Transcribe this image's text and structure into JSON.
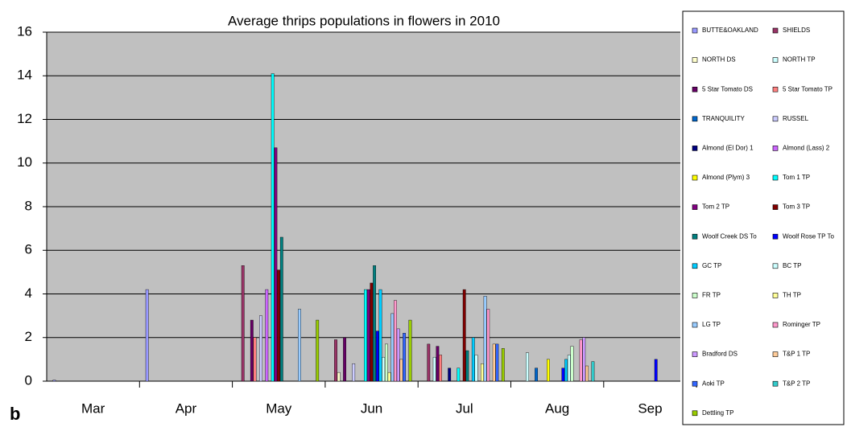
{
  "chart_data": {
    "type": "bar",
    "title": "Average thrips populations in flowers in 2010",
    "annotation": "b",
    "categories": [
      "Mar",
      "Apr",
      "May",
      "Jun",
      "Jul",
      "Aug",
      "Sep"
    ],
    "ylim": [
      0,
      16
    ],
    "yticks": [
      0,
      2,
      4,
      6,
      8,
      10,
      12,
      14,
      16
    ],
    "grid": true,
    "legend": "right",
    "background": "#c0c0c0",
    "series": [
      {
        "name": "BUTTE&OAKLAND",
        "color": "#9999ff",
        "values": [
          0.05,
          4.2,
          null,
          null,
          null,
          null,
          null
        ]
      },
      {
        "name": "SHIELDS",
        "color": "#993366",
        "values": [
          null,
          null,
          5.3,
          1.9,
          1.7,
          null,
          null
        ]
      },
      {
        "name": "NORTH DS",
        "color": "#ffffcc",
        "values": [
          null,
          null,
          null,
          0.4,
          null,
          null,
          null
        ]
      },
      {
        "name": "NORTH TP",
        "color": "#ccffff",
        "values": [
          null,
          null,
          null,
          null,
          1.1,
          1.3,
          null
        ]
      },
      {
        "name": "5 Star Tomato DS",
        "color": "#660066",
        "values": [
          null,
          null,
          2.8,
          2.0,
          1.6,
          null,
          null
        ]
      },
      {
        "name": "5 Star Tomato TP",
        "color": "#ff8080",
        "values": [
          null,
          null,
          2.0,
          null,
          1.2,
          null,
          null
        ]
      },
      {
        "name": "TRANQUILITY",
        "color": "#0066cc",
        "values": [
          null,
          null,
          null,
          null,
          null,
          0.6,
          null
        ]
      },
      {
        "name": "RUSSEL",
        "color": "#ccccff",
        "values": [
          null,
          null,
          3.0,
          0.8,
          null,
          null,
          null
        ]
      },
      {
        "name": "Almond (El Dor)  1",
        "color": "#000080",
        "values": [
          null,
          null,
          null,
          null,
          0.6,
          null,
          null
        ]
      },
      {
        "name": "Almond (Lass) 2",
        "color": "#cc66ff",
        "values": [
          null,
          null,
          4.2,
          null,
          null,
          null,
          null
        ]
      },
      {
        "name": "Almond (Plym) 3",
        "color": "#ffff00",
        "values": [
          null,
          null,
          null,
          null,
          null,
          1.0,
          null
        ]
      },
      {
        "name": "Tom 1 TP",
        "color": "#00ffff",
        "values": [
          null,
          null,
          14.1,
          4.2,
          0.6,
          null,
          null
        ]
      },
      {
        "name": "Tom 2 TP",
        "color": "#800080",
        "values": [
          null,
          null,
          10.7,
          4.2,
          null,
          null,
          null
        ]
      },
      {
        "name": "Tom 3 TP",
        "color": "#800000",
        "values": [
          null,
          null,
          5.1,
          4.5,
          4.2,
          null,
          null
        ]
      },
      {
        "name": "Woolf Creek DS To",
        "color": "#008080",
        "values": [
          null,
          null,
          6.6,
          5.3,
          1.4,
          null,
          null
        ]
      },
      {
        "name": "Woolf Rose TP To",
        "color": "#0000ff",
        "values": [
          null,
          null,
          null,
          2.3,
          null,
          0.6,
          1.0
        ]
      },
      {
        "name": "GC TP",
        "color": "#00ccff",
        "values": [
          null,
          null,
          null,
          4.2,
          2.0,
          1.0,
          null
        ]
      },
      {
        "name": "BC TP",
        "color": "#ccffff",
        "values": [
          null,
          null,
          null,
          1.1,
          1.2,
          1.2,
          null
        ]
      },
      {
        "name": "FR TP",
        "color": "#ccffcc",
        "values": [
          null,
          null,
          null,
          1.7,
          null,
          1.6,
          null
        ]
      },
      {
        "name": "TH TP",
        "color": "#ffff99",
        "values": [
          null,
          null,
          null,
          0.4,
          0.8,
          null,
          null
        ]
      },
      {
        "name": "LG TP",
        "color": "#99ccff",
        "values": [
          null,
          null,
          3.3,
          3.1,
          3.9,
          null,
          null
        ]
      },
      {
        "name": "Rominger TP",
        "color": "#ff99cc",
        "values": [
          null,
          null,
          null,
          3.7,
          3.3,
          1.9,
          null
        ]
      },
      {
        "name": "Bradford DS",
        "color": "#cc99ff",
        "values": [
          null,
          null,
          null,
          2.4,
          null,
          2.0,
          null
        ]
      },
      {
        "name": "T&P 1 TP",
        "color": "#ffcc99",
        "values": [
          null,
          null,
          null,
          1.0,
          1.7,
          0.7,
          null
        ]
      },
      {
        "name": "Aoki TP",
        "color": "#3366ff",
        "values": [
          null,
          null,
          null,
          2.2,
          1.7,
          null,
          null
        ]
      },
      {
        "name": "T&P 2 TP",
        "color": "#33cccc",
        "values": [
          null,
          null,
          null,
          null,
          null,
          0.9,
          null
        ]
      },
      {
        "name": "Dettling TP",
        "color": "#99cc00",
        "values": [
          null,
          null,
          2.8,
          2.8,
          1.5,
          null,
          null
        ]
      }
    ]
  }
}
